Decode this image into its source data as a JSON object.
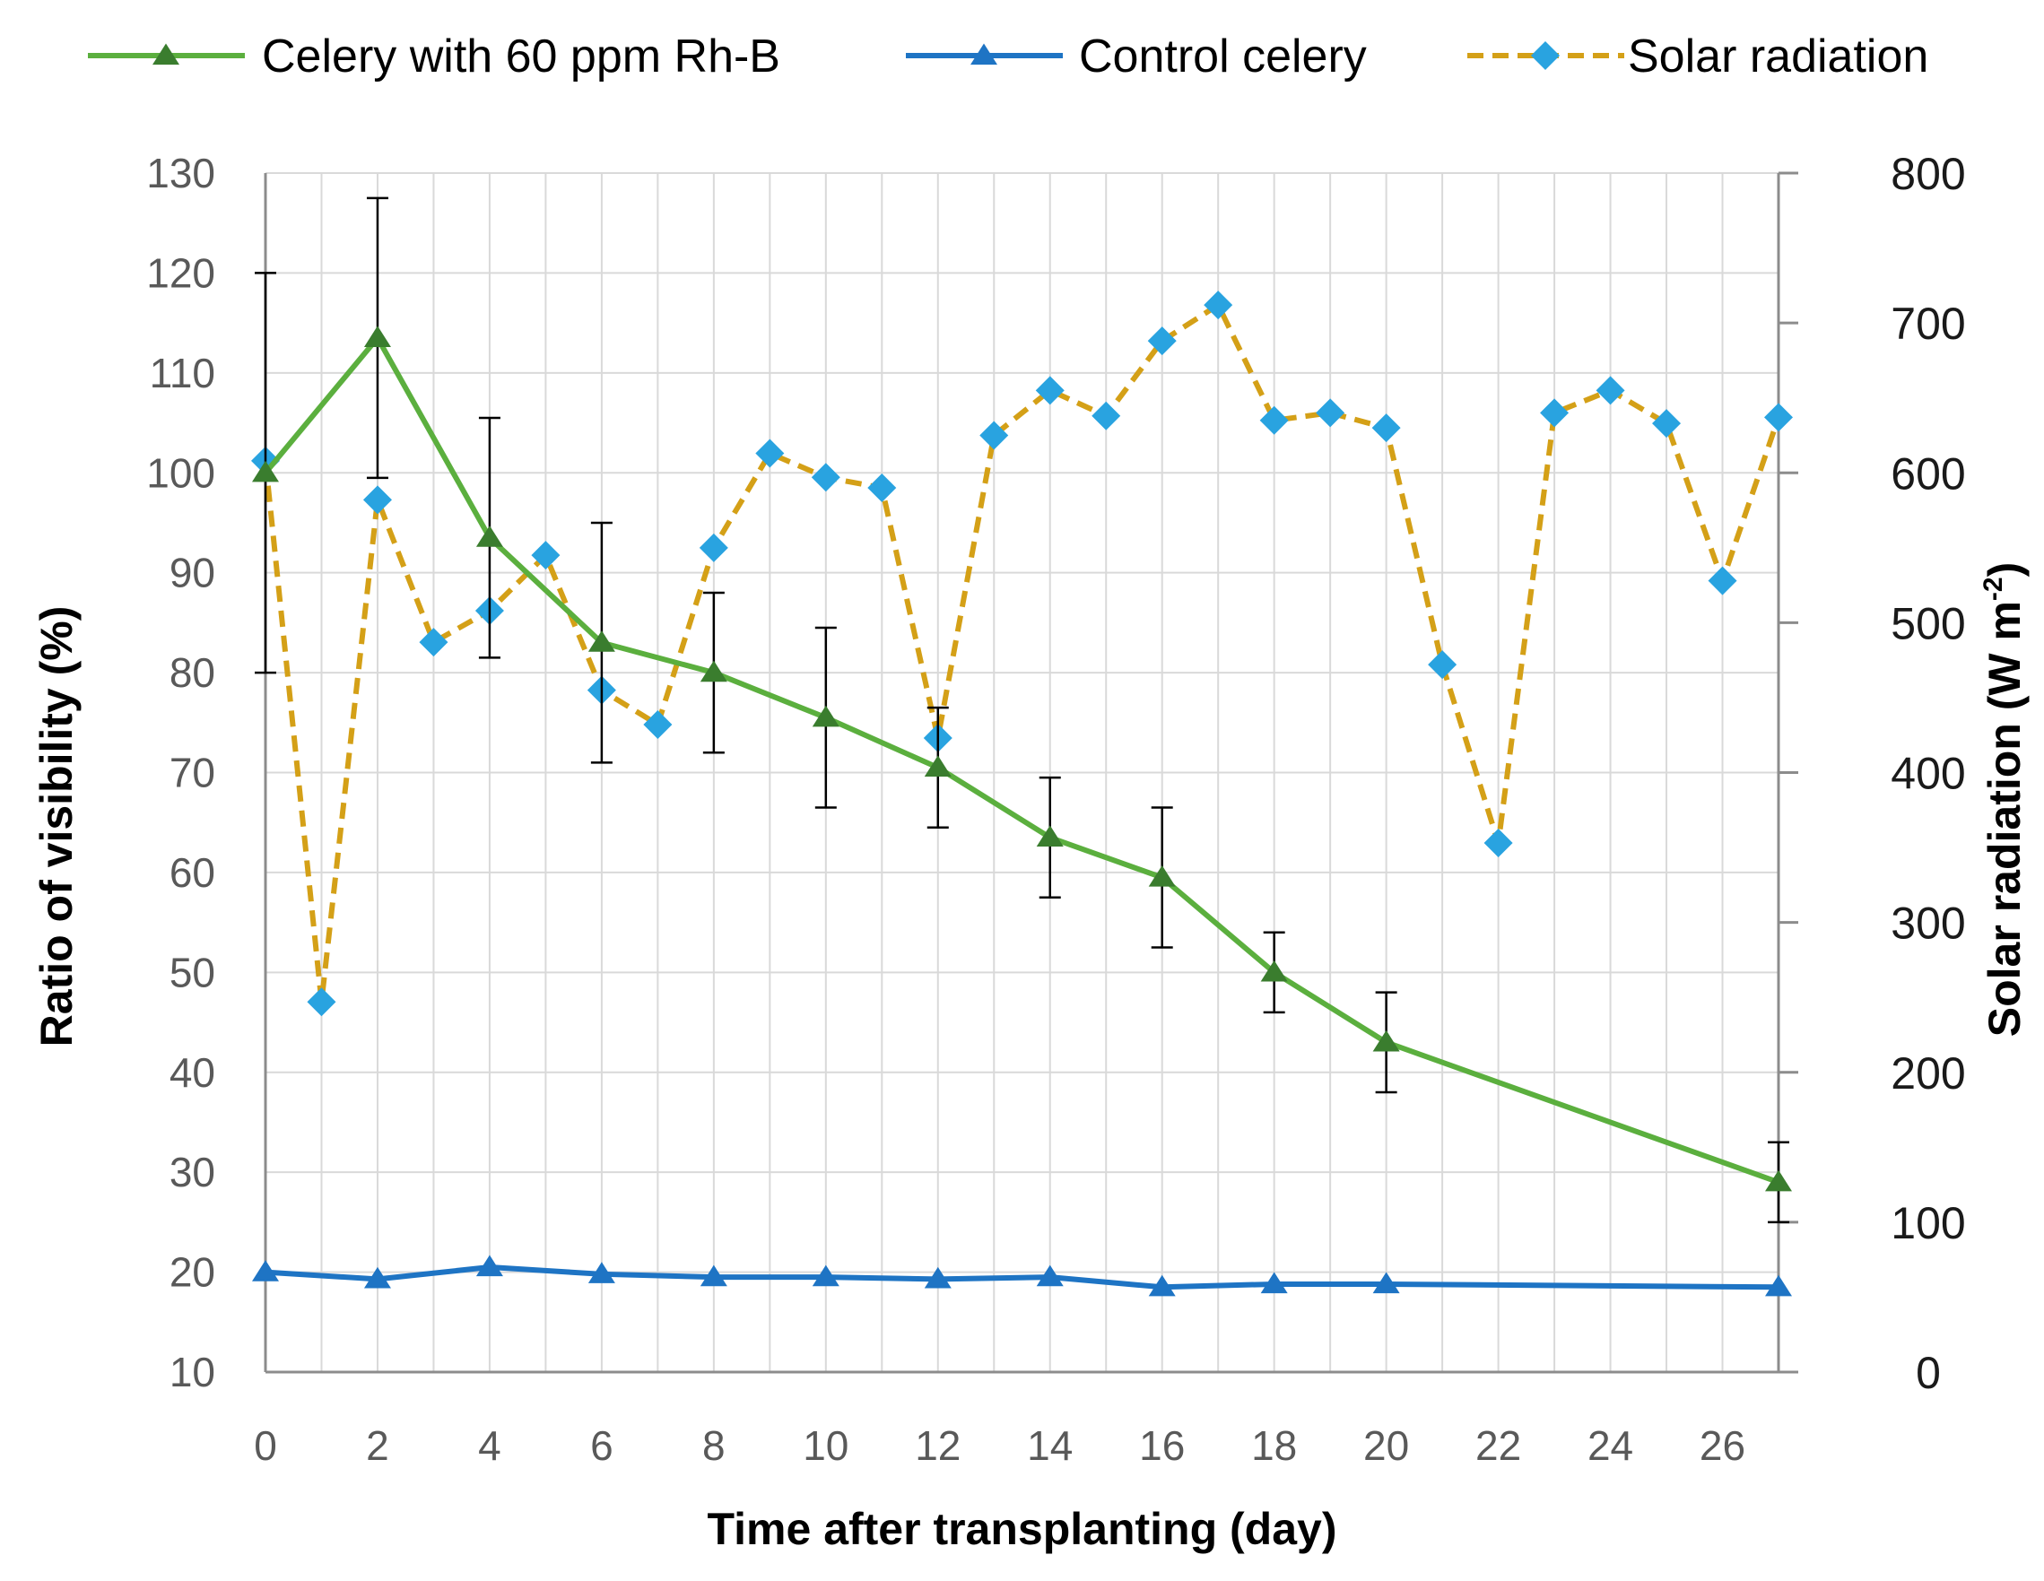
{
  "chart_data": {
    "type": "line",
    "title": "",
    "xlabel": "Time after transplanting  (day)",
    "ylabel": "Ratio of visibility (%)",
    "y2label_main": "Solar radiation (W m",
    "y2label_sup": "-2",
    "y2label_end": ")",
    "xlim": [
      0,
      27
    ],
    "ylim": [
      10,
      130
    ],
    "y2lim": [
      0,
      800
    ],
    "x_ticks": [
      0,
      2,
      4,
      6,
      8,
      10,
      12,
      14,
      16,
      18,
      20,
      22,
      24,
      26
    ],
    "y_ticks": [
      10,
      20,
      30,
      40,
      50,
      60,
      70,
      80,
      90,
      100,
      110,
      120,
      130
    ],
    "y2_ticks": [
      0,
      100,
      200,
      300,
      400,
      500,
      600,
      700,
      800
    ],
    "grid": true,
    "legend": "top",
    "series": [
      {
        "name": "Celery with 60 ppm Rh-B",
        "axis": "left",
        "color": "#5BAF3E",
        "marker_color": "#3A7D2E",
        "marker": "triangle",
        "dash": false,
        "x": [
          0,
          2,
          4,
          6,
          8,
          10,
          12,
          14,
          16,
          18,
          20,
          27
        ],
        "values": [
          100,
          113.5,
          93.5,
          83,
          80,
          75.5,
          70.5,
          63.5,
          59.5,
          50,
          43,
          29
        ],
        "error": [
          20,
          14,
          12,
          12,
          8,
          9,
          6,
          6,
          7,
          4,
          5,
          4
        ]
      },
      {
        "name": "Control celery",
        "axis": "left",
        "color": "#1E74C4",
        "marker_color": "#1E74C4",
        "marker": "triangle",
        "dash": false,
        "x": [
          0,
          2,
          4,
          6,
          8,
          10,
          12,
          14,
          16,
          18,
          20,
          27
        ],
        "values": [
          20,
          19.3,
          20.5,
          19.8,
          19.5,
          19.5,
          19.3,
          19.5,
          18.5,
          18.8,
          18.8,
          18.5
        ]
      },
      {
        "name": "Solar radiation",
        "axis": "right",
        "color": "#D4A017",
        "marker_color": "#29A3E0",
        "marker": "diamond",
        "dash": true,
        "x": [
          0,
          1,
          2,
          3,
          4,
          5,
          6,
          7,
          8,
          9,
          10,
          11,
          12,
          13,
          14,
          15,
          16,
          17,
          18,
          19,
          20,
          21,
          22,
          23,
          24,
          25,
          26,
          27
        ],
        "values": [
          608,
          247,
          582,
          487,
          508,
          545,
          455,
          432,
          550,
          613,
          597,
          590,
          423,
          625,
          655,
          638,
          688,
          712,
          635,
          640,
          630,
          472,
          353,
          640,
          655,
          633,
          528,
          637
        ]
      }
    ]
  }
}
